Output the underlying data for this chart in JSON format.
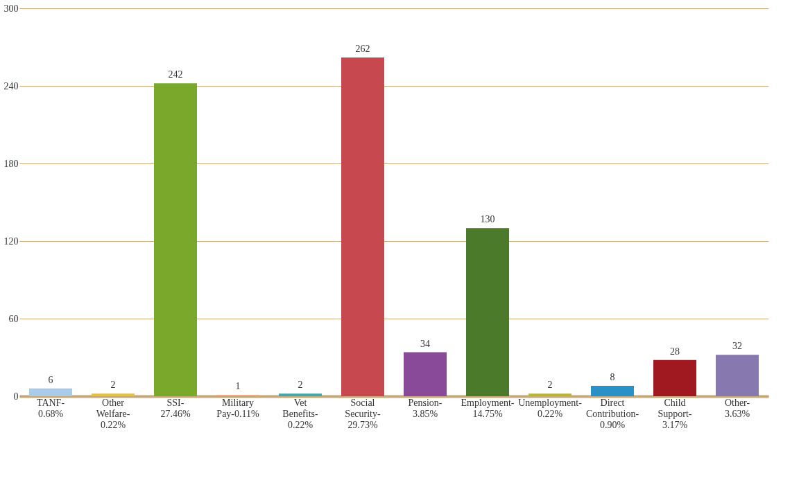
{
  "chart_data": {
    "type": "bar",
    "categories": [
      "TANF-0.68%",
      "Other Welfare-0.22%",
      "SSI-27.46%",
      "Military Pay-0.11%",
      "Vet Benefits-0.22%",
      "Social Security-29.73%",
      "Pension-3.85%",
      "Employment-14.75%",
      "Unemployment-0.22%",
      "Direct Contribution-0.90%",
      "Child Support-3.17%",
      "Other-3.63%"
    ],
    "values": [
      6,
      2,
      242,
      1,
      2,
      262,
      34,
      130,
      2,
      8,
      28,
      32
    ],
    "colors": [
      "#a9cde8",
      "#e8c040",
      "#7aa82a",
      "#f0a080",
      "#40a8a8",
      "#c84850",
      "#8a4a9a",
      "#4a7a2a",
      "#b8b830",
      "#2a90c8",
      "#a01820",
      "#8878b0"
    ],
    "ylim": [
      0,
      300
    ],
    "yticks": [
      0,
      60,
      120,
      180,
      240,
      300
    ],
    "grid": "y",
    "data_labels": true
  }
}
